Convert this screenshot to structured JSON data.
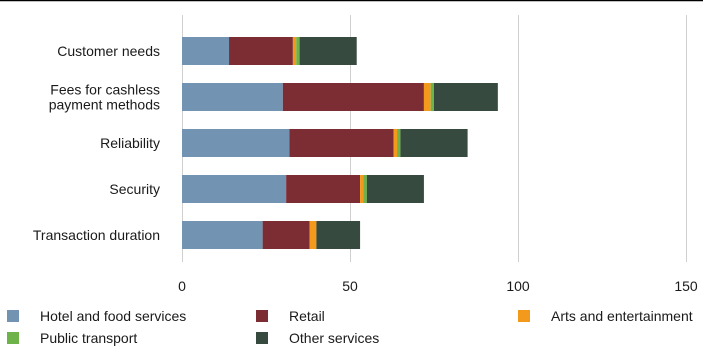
{
  "chart_data": {
    "type": "bar",
    "orientation": "horizontal",
    "stacked": true,
    "categories": [
      "Customer needs",
      "Fees for cashless payment methods",
      "Reliability",
      "Security",
      "Transaction duration"
    ],
    "category_label_lines": [
      [
        "Customer needs"
      ],
      [
        "Fees for cashless",
        "payment methods"
      ],
      [
        "Reliability"
      ],
      [
        "Security"
      ],
      [
        "Transaction duration"
      ]
    ],
    "series": [
      {
        "name": "Hotel and food services",
        "color": "#7393b3",
        "values": [
          14,
          30,
          32,
          31,
          24
        ]
      },
      {
        "name": "Retail",
        "color": "#7b2d33",
        "values": [
          19,
          42,
          31,
          22,
          14
        ]
      },
      {
        "name": "Arts and entertainment",
        "color": "#f39a1d",
        "values": [
          1,
          2,
          1,
          1,
          2
        ]
      },
      {
        "name": "Public transport",
        "color": "#6db34a",
        "values": [
          1,
          1,
          1,
          1,
          0
        ]
      },
      {
        "name": "Other services",
        "color": "#374a40",
        "values": [
          17,
          19,
          20,
          17,
          13
        ]
      }
    ],
    "x_ticks": [
      0,
      50,
      100,
      150
    ],
    "xlim": [
      0,
      150
    ],
    "grid": "vertical",
    "legend_position": "bottom",
    "title": "",
    "xlabel": "",
    "ylabel": ""
  }
}
